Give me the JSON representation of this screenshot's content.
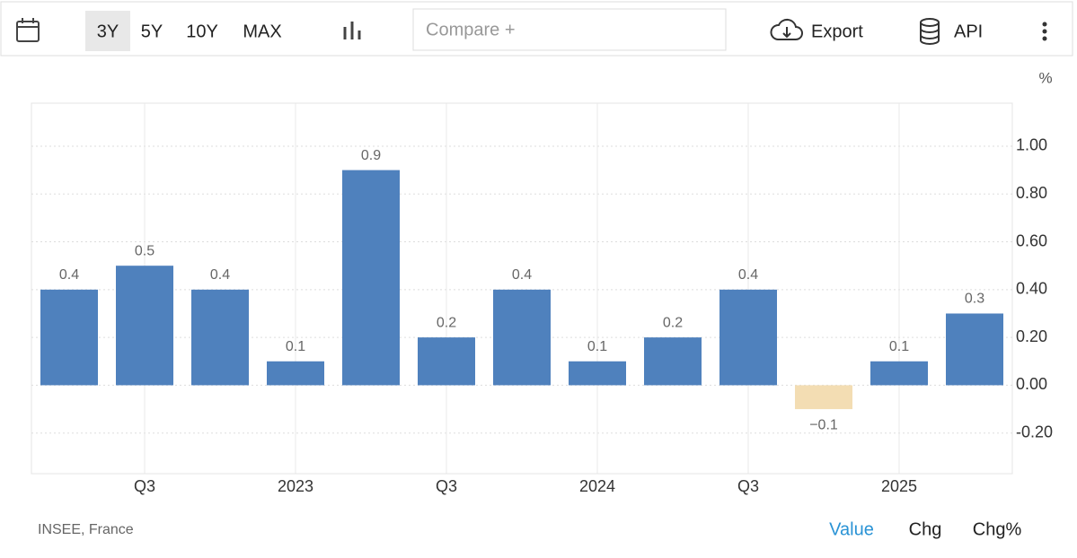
{
  "toolbar": {
    "ranges": [
      "3Y",
      "5Y",
      "10Y",
      "MAX"
    ],
    "compare": "Compare +",
    "export": "Export",
    "api": "API"
  },
  "chart_data": {
    "type": "bar",
    "unit": "%",
    "categories": [
      null,
      "Q3",
      null,
      "2023",
      null,
      "Q3",
      null,
      "2024",
      null,
      "Q3",
      null,
      "2025",
      null
    ],
    "values": [
      0.4,
      0.5,
      0.4,
      0.1,
      0.9,
      0.2,
      0.4,
      0.1,
      0.2,
      0.4,
      -0.1,
      0.1,
      0.3
    ],
    "value_labels": [
      "0.4",
      "0.5",
      "0.4",
      "0.1",
      "0.9",
      "0.2",
      "0.4",
      "0.1",
      "0.2",
      "0.4",
      "−0.1",
      "0.1",
      "0.3"
    ],
    "color": "#4f81bd",
    "negative_color": "#f3ddb3",
    "ylim": [
      -0.37,
      1.18
    ],
    "yticks": [
      {
        "value": -0.2,
        "label": "-0.20"
      },
      {
        "value": 0,
        "label": "0.00"
      },
      {
        "value": 0.2,
        "label": "0.20"
      },
      {
        "value": 0.4,
        "label": "0.40"
      },
      {
        "value": 0.6,
        "label": "0.60"
      },
      {
        "value": 0.8,
        "label": "0.80"
      },
      {
        "value": 1,
        "label": "1.00"
      }
    ],
    "grid": true
  },
  "footer": {
    "source": "INSEE, France",
    "views": [
      "Value",
      "Chg",
      "Chg%"
    ]
  }
}
